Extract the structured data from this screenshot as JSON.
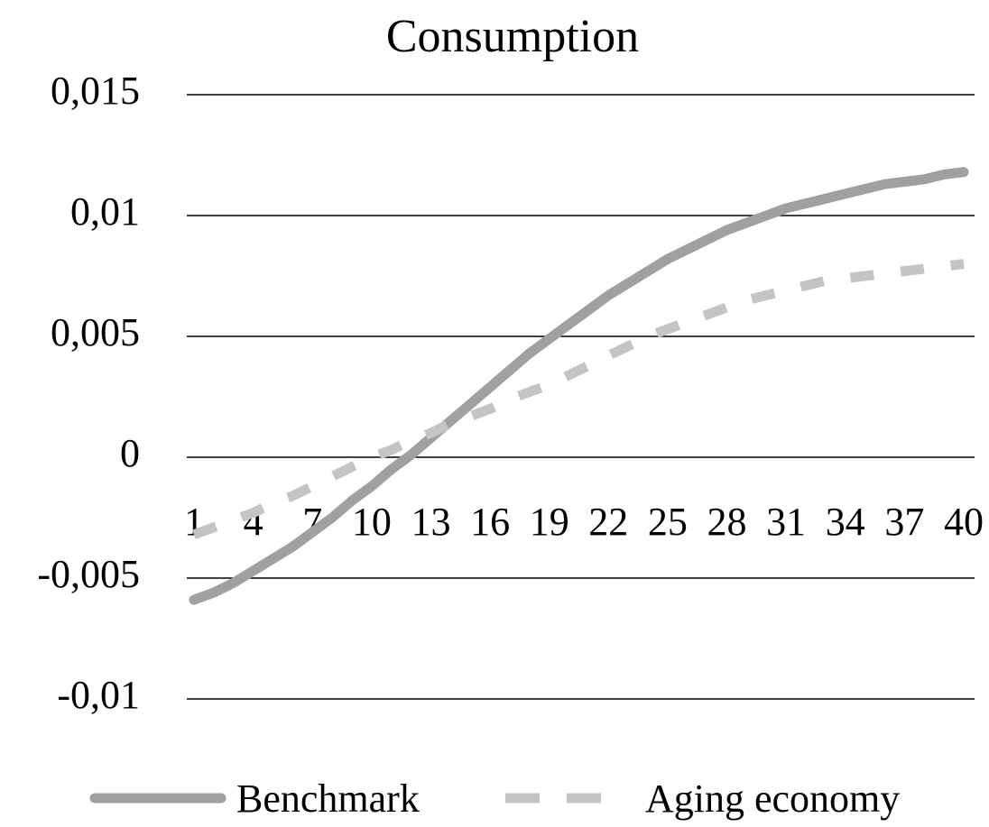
{
  "chart_data": {
    "type": "line",
    "title": "Consumption",
    "categories": [
      1,
      null,
      null,
      4,
      null,
      null,
      7,
      null,
      null,
      10,
      null,
      null,
      13,
      null,
      null,
      16,
      null,
      null,
      19,
      null,
      null,
      22,
      null,
      null,
      25,
      null,
      null,
      28,
      null,
      null,
      31,
      null,
      null,
      34,
      null,
      null,
      37,
      null,
      null,
      40
    ],
    "series": [
      {
        "name": "Benchmark",
        "color": "#a0a0a0",
        "line_style": "solid",
        "values": [
          -0.0059,
          -0.0056,
          -0.0052,
          -0.0047,
          -0.0042,
          -0.0037,
          -0.0031,
          -0.0025,
          -0.0018,
          -0.0012,
          -0.0005,
          0.0001,
          0.0008,
          0.0015,
          0.0022,
          0.0029,
          0.0036,
          0.0043,
          0.0049,
          0.0055,
          0.0061,
          0.0067,
          0.0072,
          0.0077,
          0.0082,
          0.0086,
          0.009,
          0.0094,
          0.0097,
          0.01,
          0.0103,
          0.0105,
          0.0107,
          0.0109,
          0.0111,
          0.0113,
          0.0114,
          0.0115,
          0.0117,
          0.0118
        ]
      },
      {
        "name": "Aging economy",
        "color": "#c4c4c4",
        "line_style": "dashed",
        "values": [
          -0.0032,
          -0.0029,
          -0.0026,
          -0.0023,
          -0.0019,
          -0.0016,
          -0.0012,
          -0.0008,
          -0.0004,
          0.0,
          0.0003,
          0.0007,
          0.001,
          0.0014,
          0.0017,
          0.002,
          0.0024,
          0.0027,
          0.003,
          0.0034,
          0.0038,
          0.0042,
          0.0046,
          0.005,
          0.0053,
          0.0056,
          0.0059,
          0.0062,
          0.0065,
          0.0067,
          0.0069,
          0.0071,
          0.0073,
          0.0074,
          0.0075,
          0.0076,
          0.0077,
          0.0078,
          0.0079,
          0.008
        ]
      }
    ],
    "ylim": [
      -0.01,
      0.015
    ],
    "yticks": [
      {
        "value": -0.01,
        "label": "-0,01"
      },
      {
        "value": -0.005,
        "label": "-0,005"
      },
      0,
      {
        "value": 0.005,
        "label": "0,005"
      },
      {
        "value": 0.01,
        "label": "0,01"
      },
      {
        "value": 0.015,
        "label": "0,015"
      }
    ],
    "grid": true,
    "legend": "bottom"
  }
}
